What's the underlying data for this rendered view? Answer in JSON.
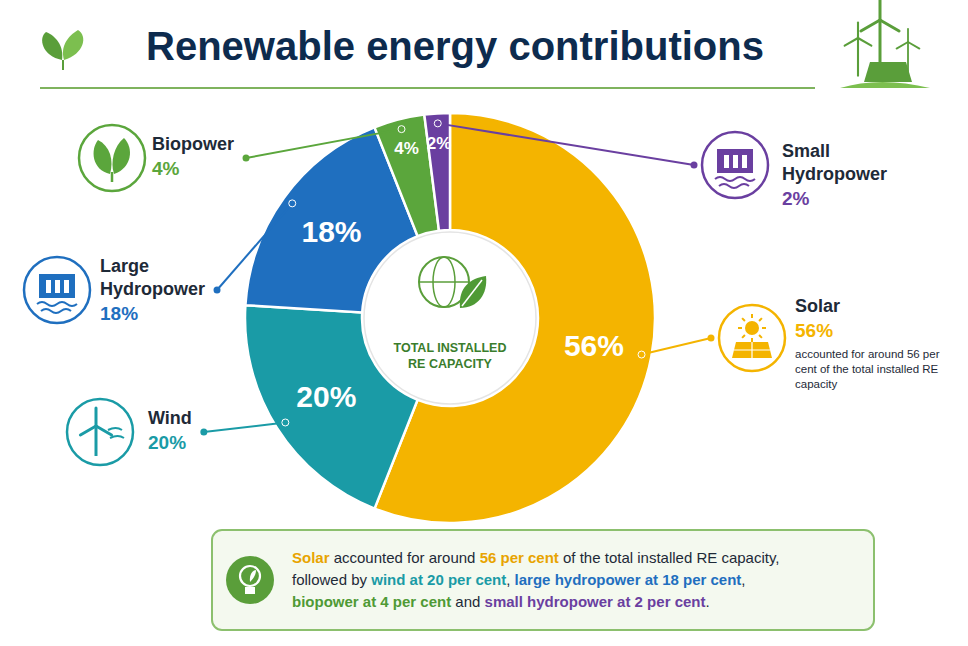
{
  "chart_data": {
    "type": "donut",
    "title": "Renewable energy contributions",
    "center_label": "TOTAL INSTALLED RE CAPACITY",
    "categories": [
      "Solar",
      "Wind",
      "Large Hydropower",
      "Biopower",
      "Small Hydropower"
    ],
    "values": [
      56,
      20,
      18,
      4,
      2
    ],
    "value_labels": [
      "56%",
      "20%",
      "18%",
      "4%",
      "2%"
    ],
    "colors": [
      "#f4b400",
      "#1a9ba6",
      "#1f6fbf",
      "#5ba63c",
      "#6a3fa0"
    ],
    "data_labels": true,
    "annotation": "accounted for around 56 per cent of the total installed RE capacity",
    "summary": [
      [
        {
          "text": "Solar",
          "color": "#e8a400"
        },
        {
          "text": " accounted for around ",
          "color": "#1e2a38"
        },
        {
          "text": "56 per cent",
          "color": "#e8a400"
        },
        {
          "text": " of the total installed RE capacity,",
          "color": "#1e2a38"
        }
      ],
      [
        {
          "text": "followed by ",
          "color": "#1e2a38"
        },
        {
          "text": "wind at 20 per cent",
          "color": "#1a9ba6"
        },
        {
          "text": ", ",
          "color": "#1e2a38"
        },
        {
          "text": "large hydropower at 18 per cent",
          "color": "#1f6fbf"
        },
        {
          "text": ",",
          "color": "#1e2a38"
        }
      ],
      [
        {
          "text": "biopower at 4 per cent",
          "color": "#4f9a35"
        },
        {
          "text": " and ",
          "color": "#1e2a38"
        },
        {
          "text": "small hydropower at 2 per cent",
          "color": "#6a3fa0"
        },
        {
          "text": ".",
          "color": "#1e2a38"
        }
      ]
    ]
  }
}
